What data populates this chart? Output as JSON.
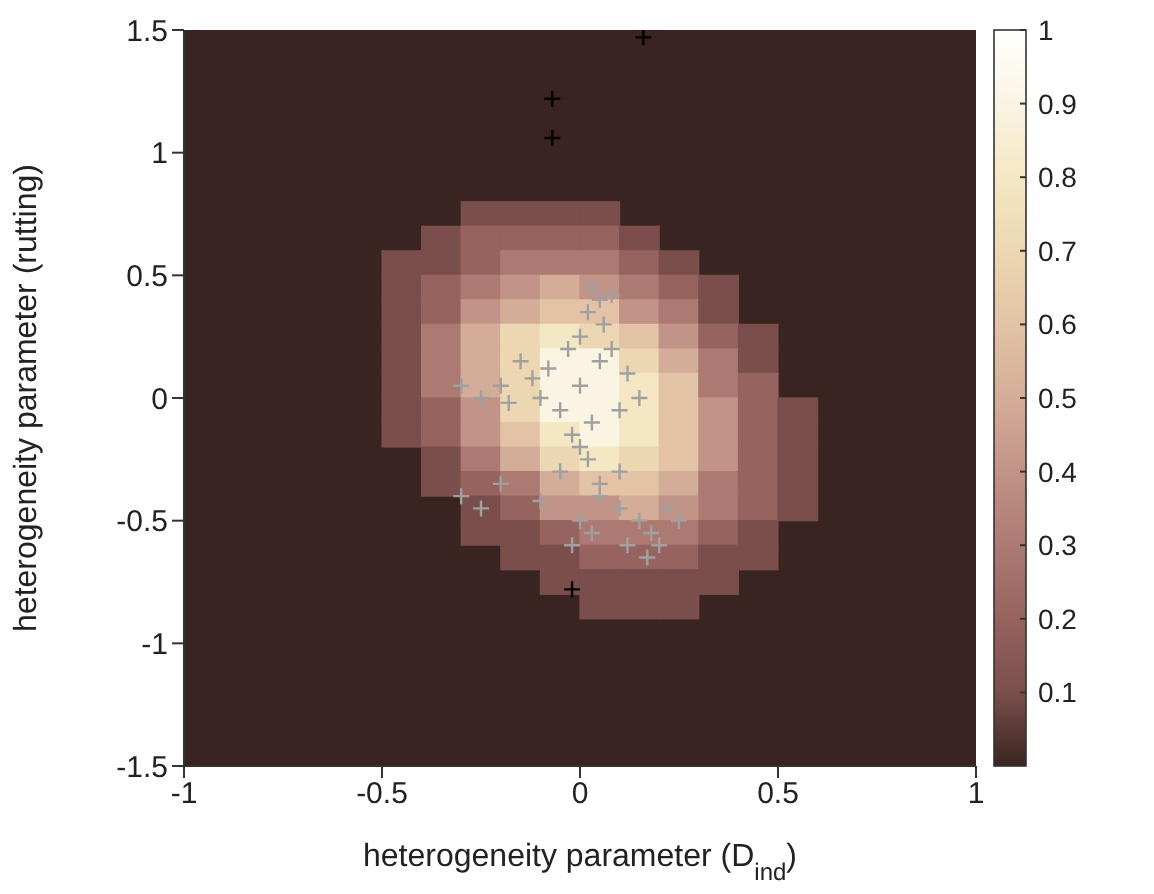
{
  "chart_data": {
    "type": "scatter",
    "xlabel": "heterogeneity parameter (D$_{ind}$)",
    "ylabel": "heterogeneity parameter (rutting)",
    "xlim": [
      -1,
      1
    ],
    "ylim": [
      -1.5,
      1.5
    ],
    "xticks": [
      -1,
      -0.5,
      0,
      0.5,
      1
    ],
    "yticks": [
      -1.5,
      -1,
      -0.5,
      0,
      0.5,
      1,
      1.5
    ],
    "clim": [
      0,
      1
    ],
    "cticks": [
      0.1,
      0.2,
      0.3,
      0.4,
      0.5,
      0.6,
      0.7,
      0.8,
      0.9,
      1
    ],
    "series": [
      {
        "marker": "square",
        "x": [
          -0.25,
          -0.15,
          -0.05,
          0.05,
          -0.35,
          -0.25,
          -0.15,
          -0.05,
          0.05,
          0.15,
          -0.45,
          -0.35,
          -0.25,
          -0.15,
          -0.05,
          0.05,
          0.15,
          0.25,
          -0.45,
          -0.35,
          -0.25,
          -0.15,
          -0.05,
          0.05,
          0.15,
          0.25,
          0.35,
          -0.45,
          -0.35,
          -0.25,
          -0.15,
          -0.05,
          0.05,
          0.15,
          0.25,
          0.35,
          -0.45,
          -0.35,
          -0.25,
          -0.15,
          -0.05,
          0.05,
          0.15,
          0.25,
          0.35,
          0.45,
          -0.45,
          -0.35,
          -0.25,
          -0.15,
          -0.05,
          0.05,
          0.15,
          0.25,
          0.35,
          0.45,
          -0.45,
          -0.35,
          -0.25,
          -0.15,
          -0.05,
          0.05,
          0.15,
          0.25,
          0.35,
          0.45,
          -0.45,
          -0.35,
          -0.25,
          -0.15,
          -0.05,
          0.05,
          0.15,
          0.25,
          0.35,
          0.45,
          0.55,
          -0.45,
          -0.35,
          -0.25,
          -0.15,
          -0.05,
          0.05,
          0.15,
          0.25,
          0.35,
          0.45,
          0.55,
          -0.35,
          -0.25,
          -0.15,
          -0.05,
          0.05,
          0.15,
          0.25,
          0.35,
          0.45,
          0.55,
          -0.35,
          -0.25,
          -0.15,
          -0.05,
          0.05,
          0.15,
          0.25,
          0.35,
          0.45,
          0.55,
          -0.25,
          -0.15,
          -0.05,
          0.05,
          0.15,
          0.25,
          0.35,
          0.45,
          0.55,
          -0.25,
          -0.15,
          -0.05,
          0.05,
          0.15,
          0.25,
          0.35,
          0.45,
          -0.15,
          -0.05,
          0.05,
          0.15,
          0.25,
          0.35,
          0.45,
          -0.05,
          0.05,
          0.15,
          0.25,
          0.35,
          0.05,
          0.15,
          0.25
        ],
        "values": [
          0.75,
          0.75,
          0.75,
          0.75,
          0.65,
          0.65,
          0.65,
          0.65,
          0.65,
          0.65,
          0.55,
          0.55,
          0.55,
          0.55,
          0.55,
          0.55,
          0.55,
          0.55,
          0.45,
          0.45,
          0.45,
          0.45,
          0.45,
          0.45,
          0.45,
          0.45,
          0.45,
          0.35,
          0.35,
          0.35,
          0.35,
          0.35,
          0.35,
          0.35,
          0.35,
          0.35,
          0.25,
          0.25,
          0.25,
          0.25,
          0.25,
          0.25,
          0.25,
          0.25,
          0.25,
          0.25,
          0.15,
          0.15,
          0.15,
          0.15,
          0.15,
          0.15,
          0.15,
          0.15,
          0.15,
          0.15,
          0.05,
          0.05,
          0.05,
          0.05,
          0.05,
          0.05,
          0.05,
          0.05,
          0.05,
          0.05,
          -0.05,
          -0.05,
          -0.05,
          -0.05,
          -0.05,
          -0.05,
          -0.05,
          -0.05,
          -0.05,
          -0.05,
          -0.05,
          -0.15,
          -0.15,
          -0.15,
          -0.15,
          -0.15,
          -0.15,
          -0.15,
          -0.15,
          -0.15,
          -0.15,
          -0.15,
          -0.25,
          -0.25,
          -0.25,
          -0.25,
          -0.25,
          -0.25,
          -0.25,
          -0.25,
          -0.25,
          -0.25,
          -0.35,
          -0.35,
          -0.35,
          -0.35,
          -0.35,
          -0.35,
          -0.35,
          -0.35,
          -0.35,
          -0.35,
          -0.45,
          -0.45,
          -0.45,
          -0.45,
          -0.45,
          -0.45,
          -0.45,
          -0.45,
          -0.45,
          -0.55,
          -0.55,
          -0.55,
          -0.55,
          -0.55,
          -0.55,
          -0.55,
          -0.55,
          -0.65,
          -0.65,
          -0.65,
          -0.65,
          -0.65,
          -0.65,
          -0.65,
          -0.75,
          -0.75,
          -0.75,
          -0.75,
          -0.75,
          -0.85,
          -0.85,
          -0.85
        ],
        "colors": [
          "#7a4f4b",
          "#7a4f4b",
          "#7a4f4b",
          "#7a4f4b",
          "#7a4f4b",
          "#97635f",
          "#97635f",
          "#97635f",
          "#97635f",
          "#7a4f4b",
          "#7a4f4b",
          "#7a4f4b",
          "#97635f",
          "#ad7a73",
          "#ad7a73",
          "#ad7a73",
          "#97635f",
          "#7a4f4b",
          "#7a4f4b",
          "#97635f",
          "#ad7a73",
          "#c29387",
          "#d4ad98",
          "#c29387",
          "#ad7a73",
          "#97635f",
          "#7a4f4b",
          "#7a4f4b",
          "#97635f",
          "#c29387",
          "#d4ad98",
          "#e2c3a5",
          "#e2c3a5",
          "#c29387",
          "#ad7a73",
          "#7a4f4b",
          "#7a4f4b",
          "#ad7a73",
          "#d4ad98",
          "#ecd7b2",
          "#f4e8c4",
          "#ecd7b2",
          "#e2c3a5",
          "#c29387",
          "#97635f",
          "#7a4f4b",
          "#7a4f4b",
          "#ad7a73",
          "#d4ad98",
          "#ecd7b2",
          "#faf4e2",
          "#faf4e2",
          "#ecd7b2",
          "#d4ad98",
          "#ad7a73",
          "#7a4f4b",
          "#7a4f4b",
          "#ad7a73",
          "#d4ad98",
          "#ecd7b2",
          "#faf4e2",
          "#faf4e2",
          "#f4e8c4",
          "#e2c3a5",
          "#ad7a73",
          "#97635f",
          "#7a4f4b",
          "#97635f",
          "#c29387",
          "#ecd7b2",
          "#faf4e2",
          "#faf4e2",
          "#f4e8c4",
          "#e2c3a5",
          "#c29387",
          "#97635f",
          "#7a4f4b",
          "#7a4f4b",
          "#97635f",
          "#c29387",
          "#e2c3a5",
          "#f4e8c4",
          "#faf4e2",
          "#f4e8c4",
          "#e2c3a5",
          "#c29387",
          "#97635f",
          "#7a4f4b",
          "#7a4f4b",
          "#ad7a73",
          "#d4ad98",
          "#ecd7b2",
          "#f4e8c4",
          "#ecd7b2",
          "#e2c3a5",
          "#c29387",
          "#97635f",
          "#7a4f4b",
          "#7a4f4b",
          "#97635f",
          "#ad7a73",
          "#d4ad98",
          "#e2c3a5",
          "#e2c3a5",
          "#d4ad98",
          "#ad7a73",
          "#97635f",
          "#7a4f4b",
          "#7a4f4b",
          "#97635f",
          "#c29387",
          "#c29387",
          "#d4ad98",
          "#c29387",
          "#ad7a73",
          "#97635f",
          "#7a4f4b",
          "#7a4f4b",
          "#7a4f4b",
          "#97635f",
          "#ad7a73",
          "#ad7a73",
          "#ad7a73",
          "#97635f",
          "#7a4f4b",
          "#7a4f4b",
          "#7a4f4b",
          "#97635f",
          "#97635f",
          "#97635f",
          "#7a4f4b",
          "#7a4f4b",
          "#7a4f4b",
          "#7a4f4b",
          "#7a4f4b",
          "#7a4f4b",
          "#7a4f4b",
          "#7a4f4b",
          "#7a4f4b",
          "#7a4f4b"
        ]
      },
      {
        "marker": "cross",
        "color": "#a0a0a0",
        "x": [
          0.03,
          0.05,
          0.08,
          0.02,
          0.06,
          0,
          -0.03,
          0.05,
          -0.08,
          -0.12,
          -0.2,
          -0.25,
          -0.18,
          -0.1,
          -0.05,
          0,
          0.03,
          -0.02,
          0,
          0.02,
          -0.05,
          0.05,
          -0.1,
          -0.2,
          -0.25,
          -0.3,
          0,
          0.03,
          -0.02,
          0.1,
          0.15,
          0.18,
          0.2,
          0.12,
          0.22,
          0.17,
          0.25,
          0.1,
          0.12,
          0.15,
          0.1,
          -0.15,
          0.08,
          -0.3,
          0.05
        ],
        "values": [
          0.45,
          0.4,
          0.42,
          0.35,
          0.3,
          0.25,
          0.2,
          0.15,
          0.12,
          0.08,
          0.05,
          0,
          -0.02,
          0,
          -0.05,
          0.05,
          -0.1,
          -0.15,
          -0.2,
          -0.25,
          -0.3,
          -0.35,
          -0.42,
          -0.35,
          -0.45,
          -0.4,
          -0.5,
          -0.55,
          -0.6,
          -0.45,
          -0.5,
          -0.55,
          -0.6,
          -0.6,
          -0.45,
          -0.65,
          -0.5,
          -0.3,
          0.1,
          0,
          -0.05,
          0.15,
          0.2,
          0.05,
          -0.4
        ]
      },
      {
        "marker": "cross",
        "color": "#000000",
        "x": [
          0.16,
          -0.07,
          -0.07,
          -0.02
        ],
        "values": [
          1.47,
          1.22,
          1.06,
          -0.78
        ]
      }
    ]
  }
}
